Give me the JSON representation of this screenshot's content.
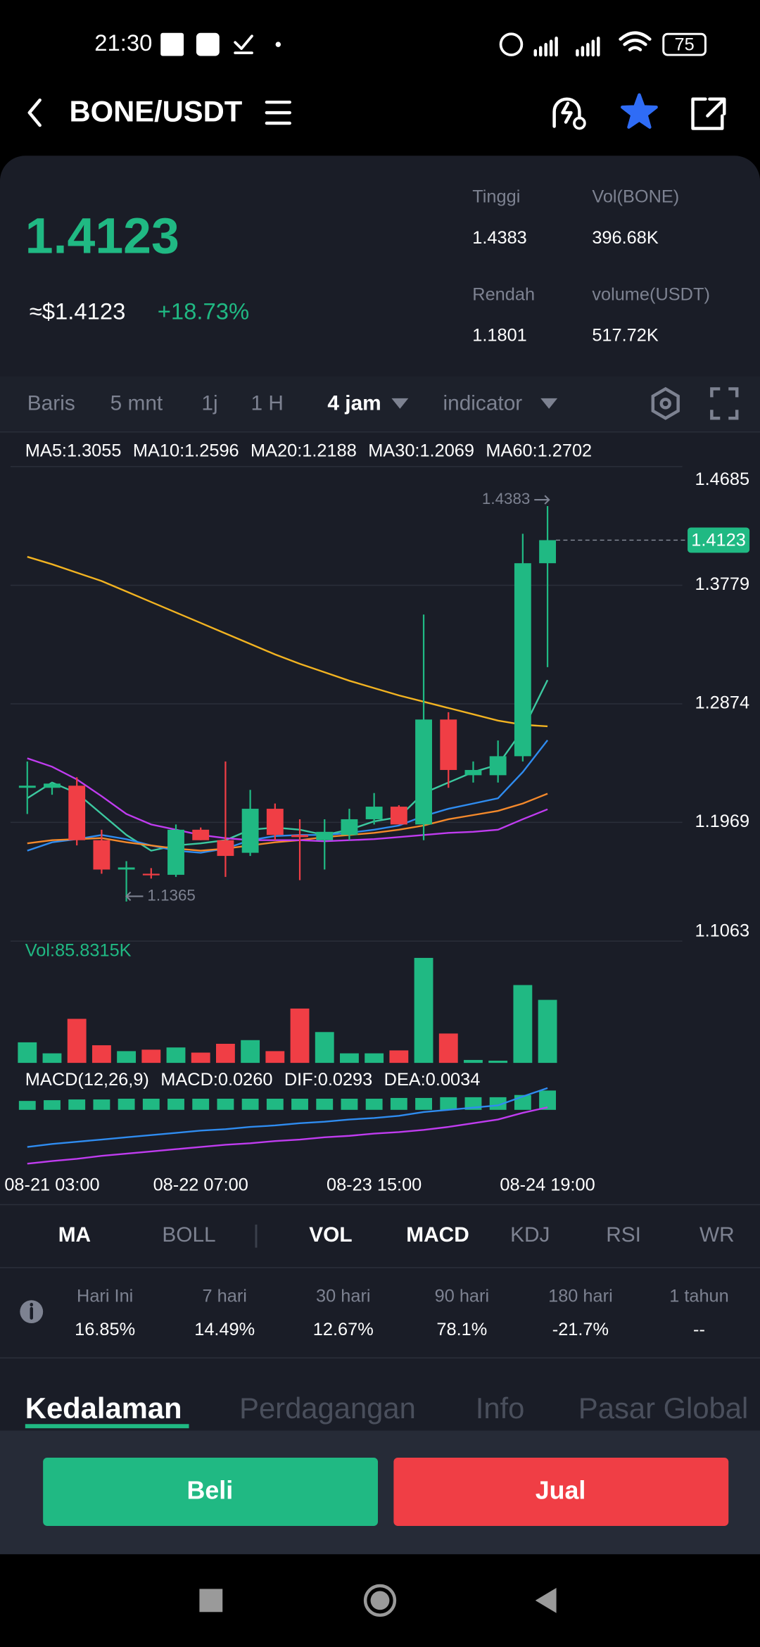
{
  "status_bar": {
    "time": "21:30",
    "battery": "75"
  },
  "header": {
    "title": "BONE/USDT"
  },
  "ticker": {
    "price": "1.4123",
    "usd_price": "≈$1.4123",
    "change": "+18.73%",
    "stats": [
      {
        "label": "Tinggi",
        "value": "1.4383"
      },
      {
        "label": "Vol(BONE)",
        "value": "396.68K"
      },
      {
        "label": "Rendah",
        "value": "1.1801"
      },
      {
        "label": "volume(USDT)",
        "value": "517.72K"
      }
    ]
  },
  "timeframes": [
    "Baris",
    "5 mnt",
    "1j",
    "1 H",
    "4 jam",
    "indicator"
  ],
  "chart_data": {
    "type": "candlestick",
    "categories": [
      null,
      "08-21 03:00",
      null,
      null,
      null,
      null,
      null,
      "08-22 07:00",
      null,
      null,
      null,
      null,
      null,
      null,
      "08-23 15:00",
      null,
      null,
      null,
      null,
      null,
      null,
      "08-24 19:00"
    ],
    "open": [
      1.2233,
      1.2233,
      1.2249,
      1.1833,
      1.1609,
      1.1577,
      1.1569,
      1.1913,
      1.1833,
      1.1737,
      1.2073,
      1.1873,
      1.1833,
      1.1873,
      1.1993,
      1.2089,
      1.1953,
      1.2754,
      1.2329,
      1.2329,
      1.2474,
      1.3947
    ],
    "high": [
      1.2434,
      1.2273,
      1.2313,
      1.1913,
      1.1673,
      1.162,
      1.1953,
      1.193,
      1.2434,
      1.2217,
      1.2113,
      1.1993,
      1.1993,
      1.2073,
      1.2193,
      1.21,
      1.3555,
      1.281,
      1.2434,
      1.2594,
      1.4172,
      1.4383
    ],
    "low": [
      1.2033,
      1.218,
      1.1793,
      1.1577,
      1.1365,
      1.154,
      1.1553,
      1.1833,
      1.1553,
      1.1713,
      1.1833,
      1.1528,
      1.1609,
      1.1833,
      1.1953,
      1.1953,
      1.1833,
      1.2233,
      1.2273,
      1.2273,
      1.2434,
      1.3154
    ],
    "close": [
      1.2249,
      1.2265,
      1.1833,
      1.1609,
      1.1625,
      1.1569,
      1.1913,
      1.1833,
      1.1713,
      1.2073,
      1.1873,
      1.1857,
      1.1897,
      1.1993,
      1.2089,
      1.1953,
      1.2754,
      1.2369,
      1.2369,
      1.2474,
      1.3947,
      1.4123
    ],
    "ylim": [
      1.1063,
      1.4685
    ],
    "yticks": [
      1.4685,
      1.3779,
      1.2874,
      1.1969,
      1.1063
    ],
    "grid": true,
    "up_color": "#20b983",
    "down_color": "#f03e45",
    "last_price": 1.4123,
    "high_marker": 1.4383,
    "low_marker": 1.1365,
    "ma": [
      {
        "name": "MA5:1.3055",
        "color": "#3cc9a0",
        "values": [
          1.2153,
          1.2273,
          1.2193,
          1.2033,
          1.1873,
          1.1753,
          1.1793,
          1.1809,
          1.1833,
          1.1913,
          1.1929,
          1.1913,
          1.1873,
          1.1913,
          1.1977,
          1.2009,
          1.2193,
          1.2273,
          1.2353,
          1.2409,
          1.2674,
          1.3055
        ]
      },
      {
        "name": "MA10:1.2596",
        "color": "#2f8cf0",
        "values": [
          1.1753,
          1.1817,
          1.1841,
          1.1873,
          1.1841,
          1.1793,
          1.1753,
          1.1737,
          1.1769,
          1.1833,
          1.1865,
          1.1873,
          1.1873,
          1.1889,
          1.1913,
          1.1945,
          1.2017,
          1.2073,
          1.2113,
          1.2153,
          1.2353,
          1.2596
        ]
      },
      {
        "name": "MA20:1.2188",
        "color": "#f4892b",
        "values": [
          1.1809,
          1.1833,
          1.1841,
          1.1849,
          1.1817,
          1.1793,
          1.1769,
          1.1753,
          1.1769,
          1.1793,
          1.1817,
          1.1833,
          1.1857,
          1.1873,
          1.1889,
          1.1913,
          1.1945,
          1.1993,
          1.2025,
          1.2057,
          1.2113,
          1.2188
        ]
      },
      {
        "name": "MA30:1.2069",
        "color": "#c03cf0",
        "values": [
          1.2458,
          1.2394,
          1.2297,
          1.2169,
          1.2033,
          1.1953,
          1.1913,
          1.1873,
          1.1849,
          1.1833,
          1.1833,
          1.1833,
          1.1825,
          1.1833,
          1.1841,
          1.1857,
          1.1873,
          1.1889,
          1.1897,
          1.1913,
          1.1993,
          1.2069
        ]
      },
      {
        "name": "MA60:1.2702",
        "color": "#f2b321",
        "values": [
          1.3996,
          1.3939,
          1.3875,
          1.3811,
          1.3731,
          1.3651,
          1.3571,
          1.3491,
          1.3411,
          1.3331,
          1.3251,
          1.3179,
          1.3115,
          1.305,
          1.2994,
          1.2938,
          1.289,
          1.2842,
          1.2794,
          1.2746,
          1.2714,
          1.2702
        ]
      }
    ],
    "volume": {
      "label": "Vol:85.8315K",
      "values": [
        28,
        13,
        60,
        24,
        16,
        18,
        21,
        14,
        26,
        31,
        16,
        74,
        42,
        13,
        13,
        17,
        143,
        40,
        4,
        3,
        106,
        85.8315
      ]
    },
    "macd": {
      "label": "MACD(12,26,9)",
      "series": [
        {
          "name": "MACD:0.0260",
          "color": "#20b983",
          "values": [
            0.012,
            0.013,
            0.014,
            0.014,
            0.015,
            0.015,
            0.015,
            0.015,
            0.015,
            0.015,
            0.015,
            0.015,
            0.015,
            0.015,
            0.015,
            0.016,
            0.016,
            0.017,
            0.017,
            0.017,
            0.02,
            0.026
          ]
        },
        {
          "name": "DIF:0.0293",
          "color": "#2f8cf0",
          "values": [
            -0.05,
            -0.046,
            -0.043,
            -0.04,
            -0.037,
            -0.034,
            -0.031,
            -0.028,
            -0.026,
            -0.023,
            -0.021,
            -0.018,
            -0.016,
            -0.013,
            -0.011,
            -0.008,
            -0.003,
            0.0,
            0.003,
            0.006,
            0.018,
            0.0293
          ]
        },
        {
          "name": "DEA:0.0034",
          "color": "#c03cf0",
          "values": [
            -0.0725,
            -0.069,
            -0.066,
            -0.062,
            -0.059,
            -0.056,
            -0.053,
            -0.05,
            -0.047,
            -0.045,
            -0.042,
            -0.04,
            -0.037,
            -0.035,
            -0.032,
            -0.03,
            -0.027,
            -0.023,
            -0.018,
            -0.013,
            -0.004,
            0.0034
          ]
        }
      ]
    }
  },
  "indicator_tabs": [
    "MA",
    "BOLL",
    "VOL",
    "MACD",
    "KDJ",
    "RSI",
    "WR"
  ],
  "performance": {
    "periods": [
      "Hari Ini",
      "7 hari",
      "30 hari",
      "90 hari",
      "180 hari",
      "1 tahun"
    ],
    "values": [
      "16.85%",
      "14.49%",
      "12.67%",
      "78.1%",
      "-21.7%",
      "--"
    ]
  },
  "section_tabs": [
    "Kedalaman",
    "Perdagangan",
    "Info",
    "Pasar Global"
  ],
  "actions": {
    "buy": "Beli",
    "sell": "Jual"
  }
}
